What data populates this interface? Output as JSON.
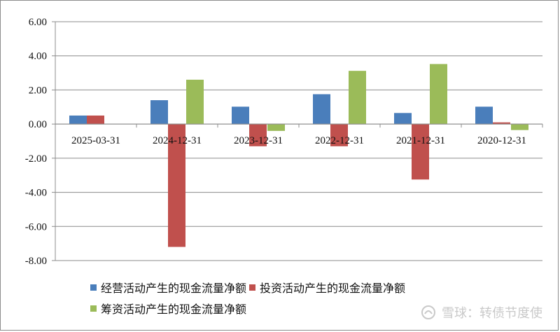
{
  "chart_data": {
    "type": "bar",
    "categories": [
      "2025-03-31",
      "2024-12-31",
      "2023-12-31",
      "2022-12-31",
      "2021-12-31",
      "2020-12-31"
    ],
    "series": [
      {
        "name": "经营活动产生的现金流量净额",
        "color": "#4a7ebb",
        "values": [
          0.5,
          1.4,
          1.02,
          1.75,
          0.65,
          1.02
        ]
      },
      {
        "name": "投资活动产生的现金流量净额",
        "color": "#c0504d",
        "values": [
          0.5,
          -7.2,
          -1.3,
          -1.3,
          -3.25,
          0.1
        ]
      },
      {
        "name": "筹资活动产生的现金流量净额",
        "color": "#9bbb59",
        "values": [
          0,
          2.6,
          -0.4,
          3.12,
          3.52,
          -0.35
        ]
      }
    ],
    "y_ticks": [
      "6.00",
      "4.00",
      "2.00",
      "0.00",
      "-2.00",
      "-4.00",
      "-6.00",
      "-8.00"
    ],
    "ylim": [
      -8,
      6
    ],
    "grid": true,
    "legend_position": "bottom"
  },
  "watermark": {
    "text": "雪球：转债节度使"
  }
}
